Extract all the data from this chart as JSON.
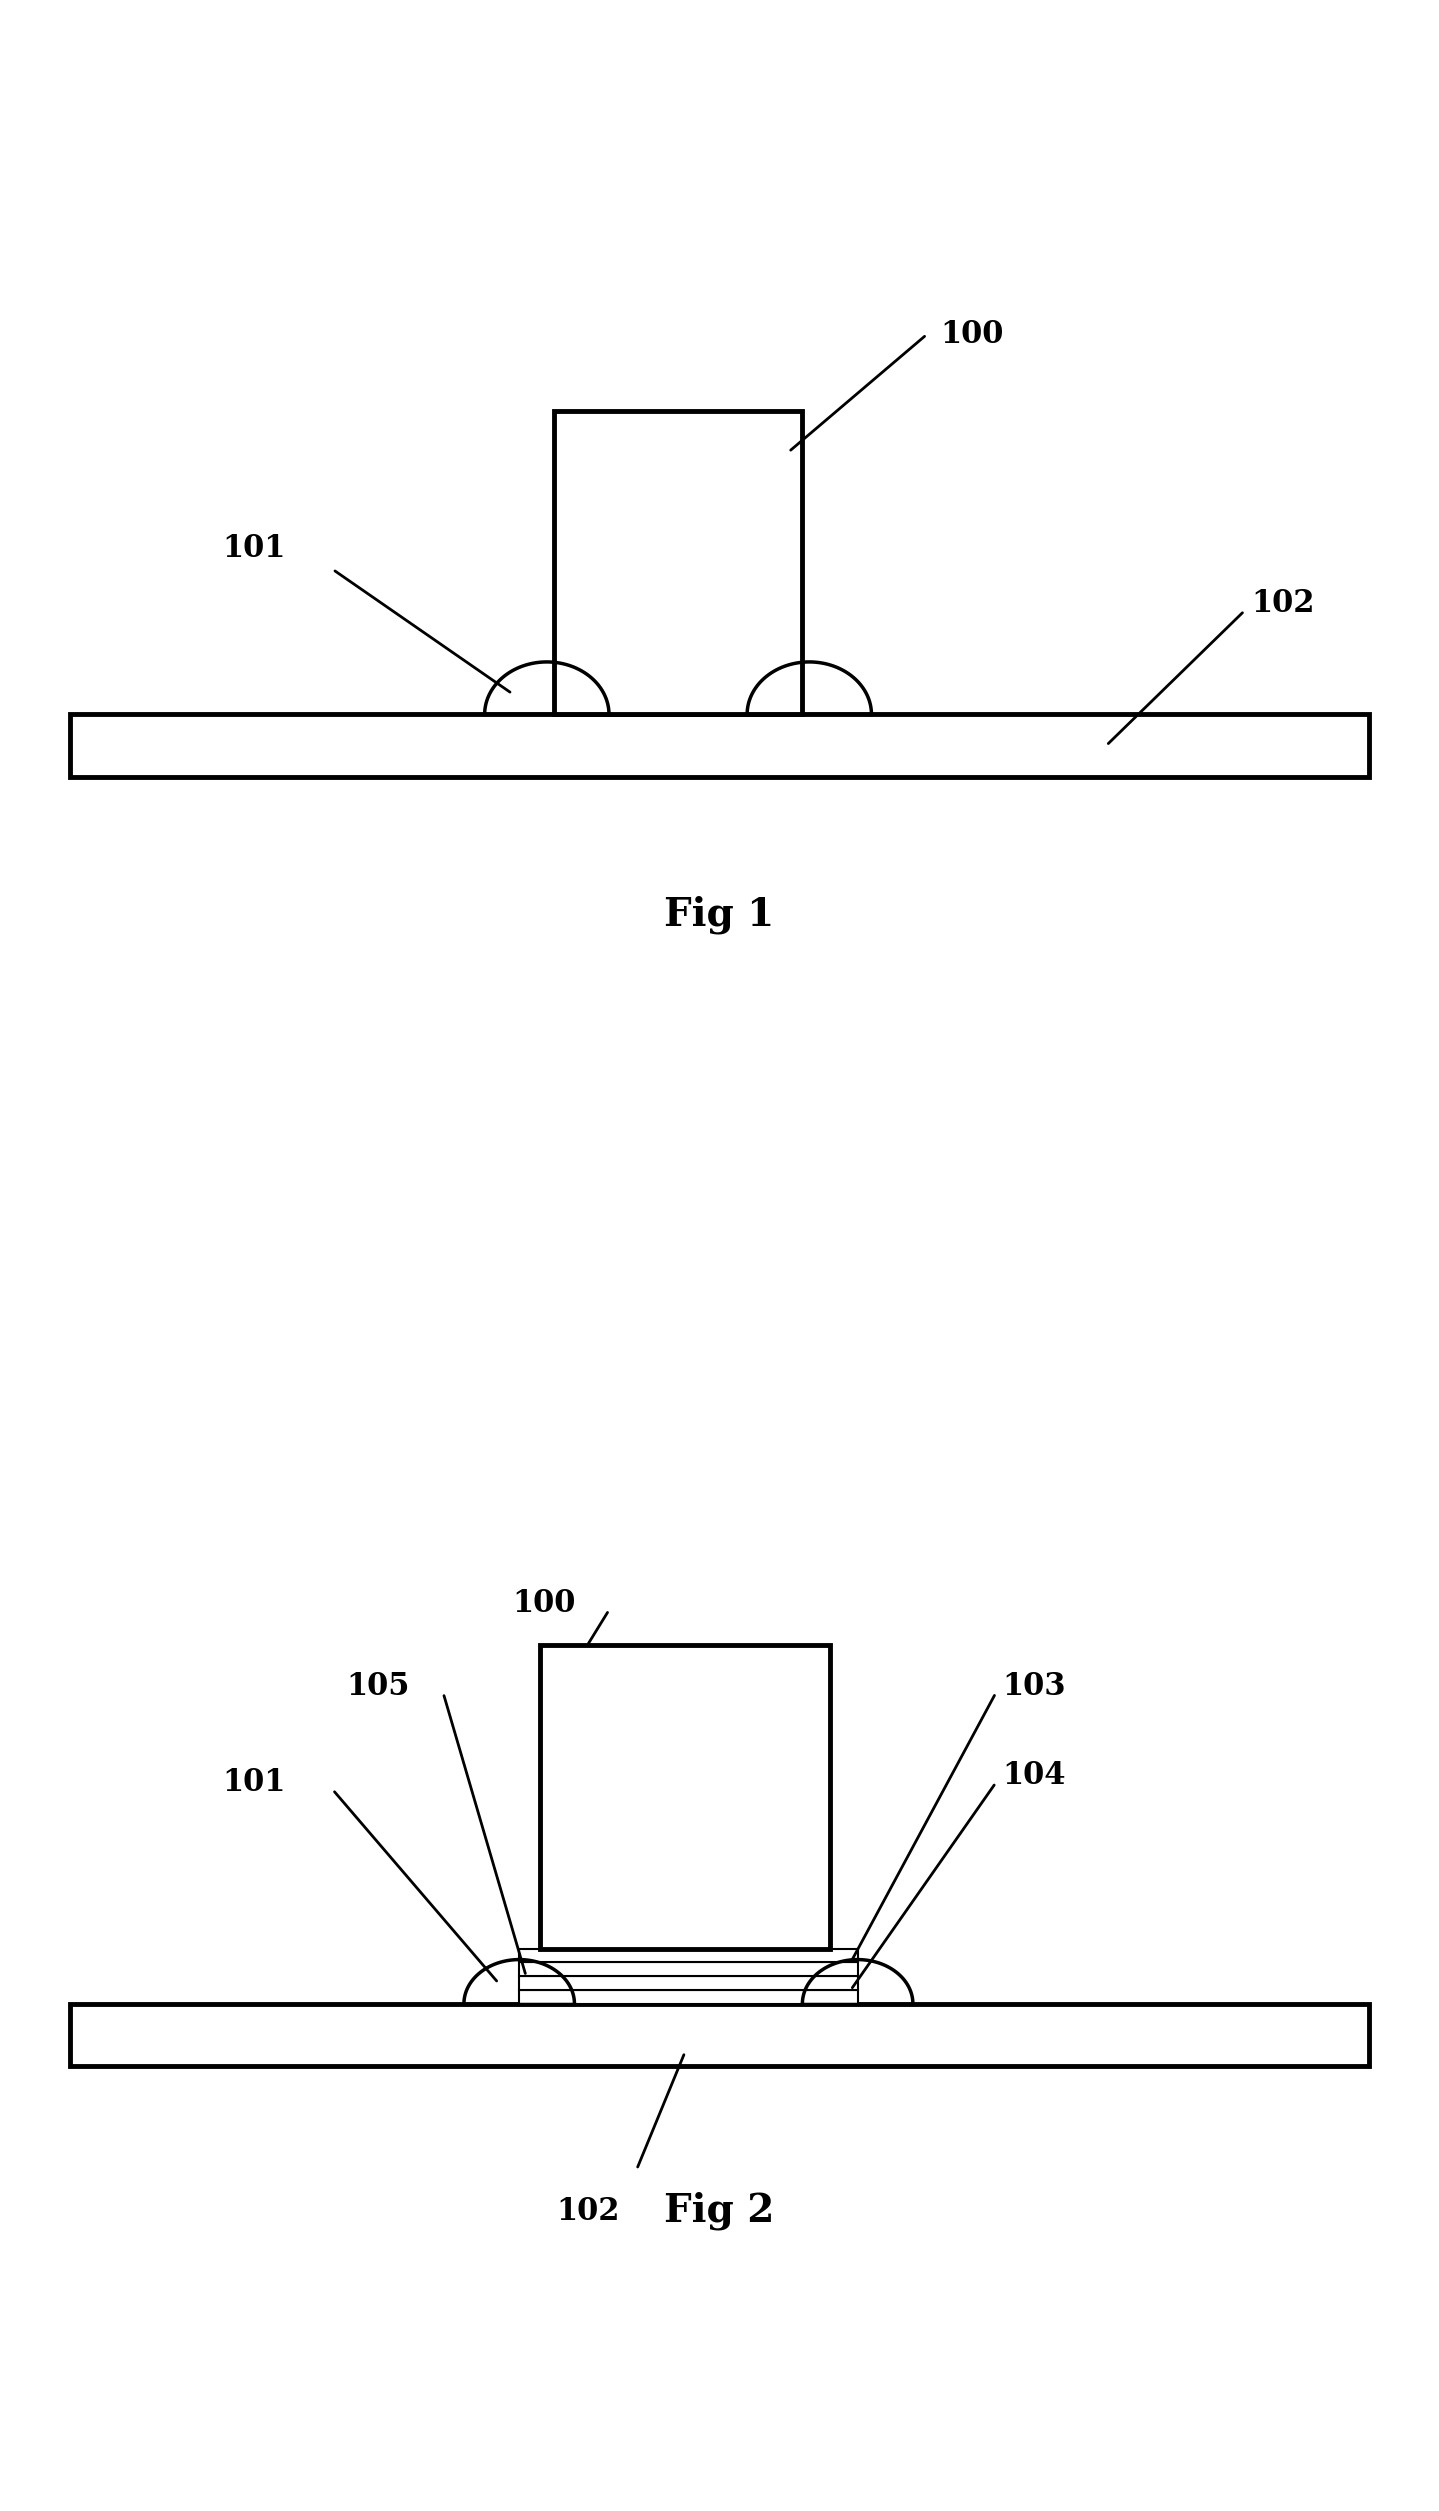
{
  "fig_width": 14.39,
  "fig_height": 25.11,
  "bg_color": "#ffffff",
  "line_color": "#000000",
  "fig1_title": "Fig 1",
  "fig2_title": "Fig 2",
  "lw_thick": 3.5,
  "lw_med": 2.5,
  "lw_thin": 2.0,
  "label_fontsize": 22,
  "title_fontsize": 28
}
